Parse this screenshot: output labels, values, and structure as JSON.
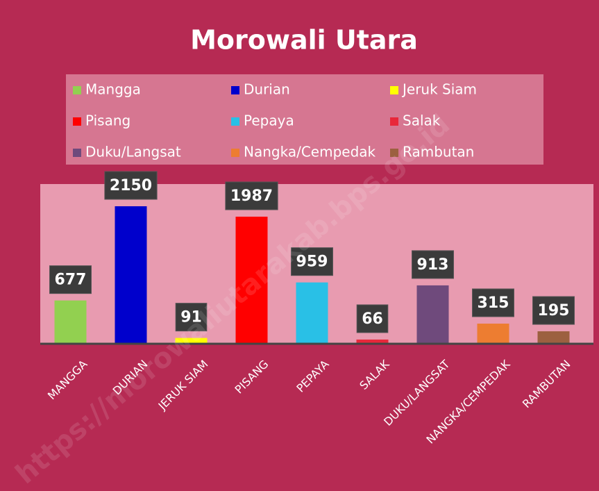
{
  "chart_data": {
    "type": "bar",
    "title": "Morowali Utara",
    "categories": [
      "MANGGA",
      "DURIAN",
      "JERUK SIAM",
      "PISANG",
      "PEPAYA",
      "SALAK",
      "DUKU/LANGSAT",
      "NANGKA/CEMPEDAK",
      "RAMBUTAN"
    ],
    "legend": [
      "Mangga",
      "Durian",
      "Jeruk Siam",
      "Pisang",
      "Pepaya",
      "Salak",
      "Duku/Langsat",
      "Nangka/Cempedak",
      "Rambutan"
    ],
    "values": [
      677,
      2150,
      91,
      1987,
      959,
      66,
      913,
      315,
      195
    ],
    "colors": [
      "#92d050",
      "#0000cc",
      "#ffff00",
      "#ff0000",
      "#29c0e6",
      "#e8273a",
      "#6f4a7c",
      "#ed7d31",
      "#9c6040"
    ],
    "watermark": "https://morowaliutarakab.bps.go.id"
  }
}
